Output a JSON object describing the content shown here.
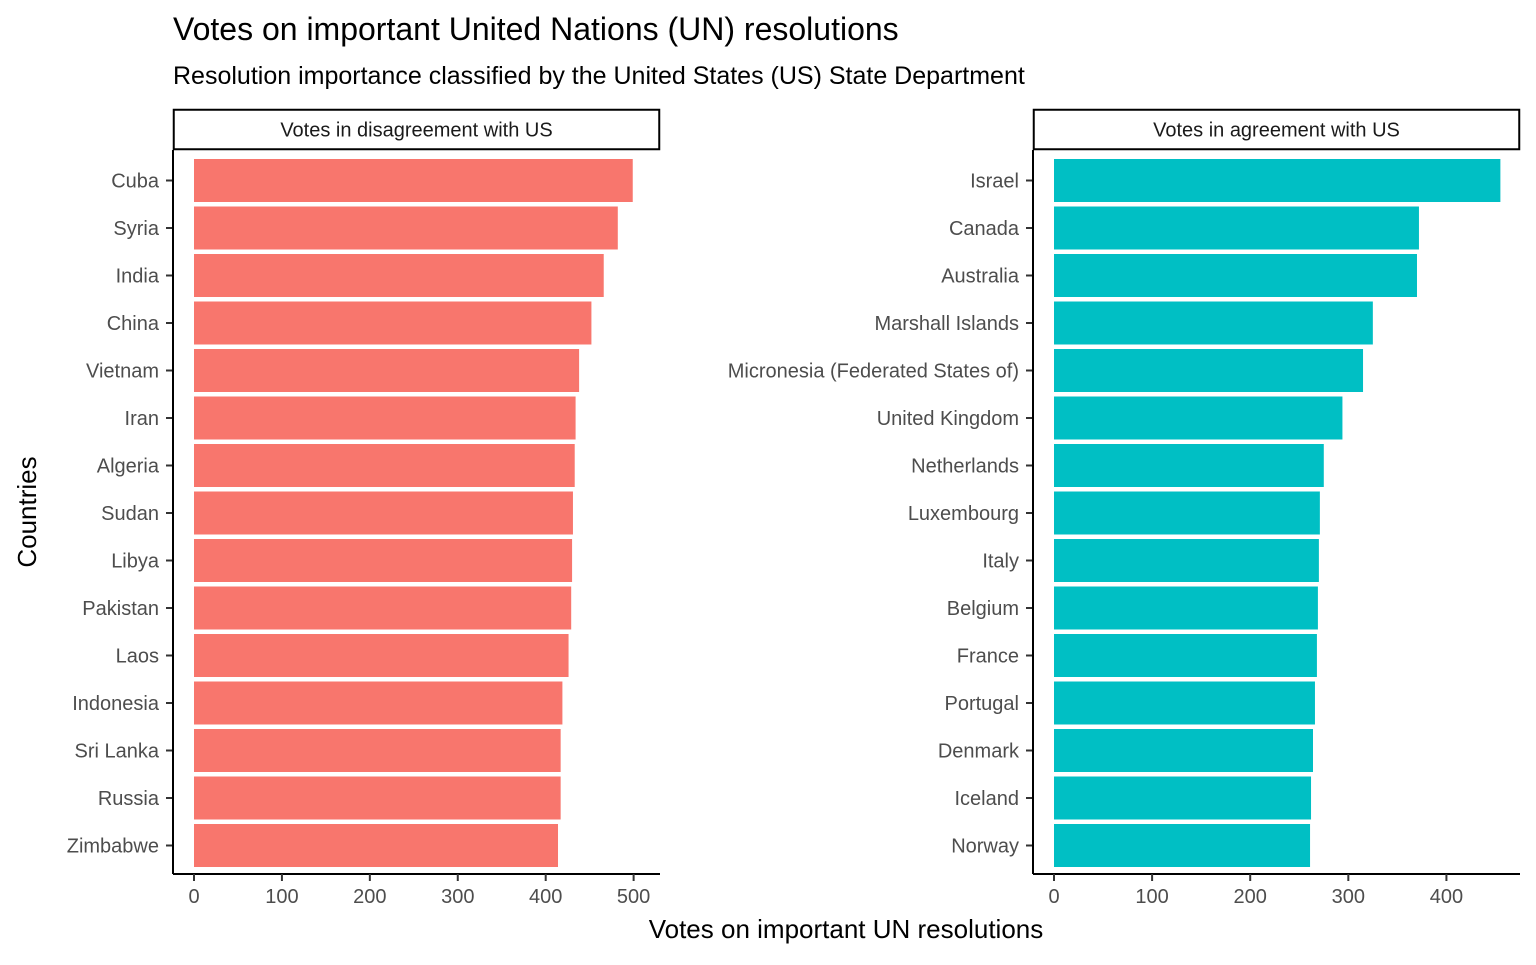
{
  "chart_data": {
    "type": "bar",
    "orientation": "horizontal",
    "title": "Votes on important United Nations (UN) resolutions",
    "subtitle": "Resolution importance classified by the United States (US) State Department",
    "xlabel": "Votes on important UN resolutions",
    "ylabel": "Countries",
    "grid": false,
    "panels": [
      {
        "strip_label": "Votes in disagreement with US",
        "color": "#F8766D",
        "xlim": [
          0,
          530
        ],
        "ticks": [
          0,
          100,
          200,
          300,
          400,
          500
        ],
        "categories": [
          "Cuba",
          "Syria",
          "India",
          "China",
          "Vietnam",
          "Iran",
          "Algeria",
          "Sudan",
          "Libya",
          "Pakistan",
          "Laos",
          "Indonesia",
          "Sri Lanka",
          "Russia",
          "Zimbabwe"
        ],
        "values": [
          499,
          482,
          466,
          452,
          438,
          434,
          433,
          431,
          430,
          429,
          426,
          419,
          417,
          417,
          414
        ]
      },
      {
        "strip_label": "Votes in agreement with US",
        "color": "#00BFC4",
        "xlim": [
          0,
          475
        ],
        "ticks": [
          0,
          100,
          200,
          300,
          400
        ],
        "categories": [
          "Israel",
          "Canada",
          "Australia",
          "Marshall Islands",
          "Micronesia (Federated States of)",
          "United Kingdom",
          "Netherlands",
          "Luxembourg",
          "Italy",
          "Belgium",
          "France",
          "Portugal",
          "Denmark",
          "Iceland",
          "Norway"
        ],
        "values": [
          455,
          372,
          370,
          325,
          315,
          294,
          275,
          271,
          270,
          269,
          268,
          266,
          264,
          262,
          261
        ]
      }
    ]
  }
}
